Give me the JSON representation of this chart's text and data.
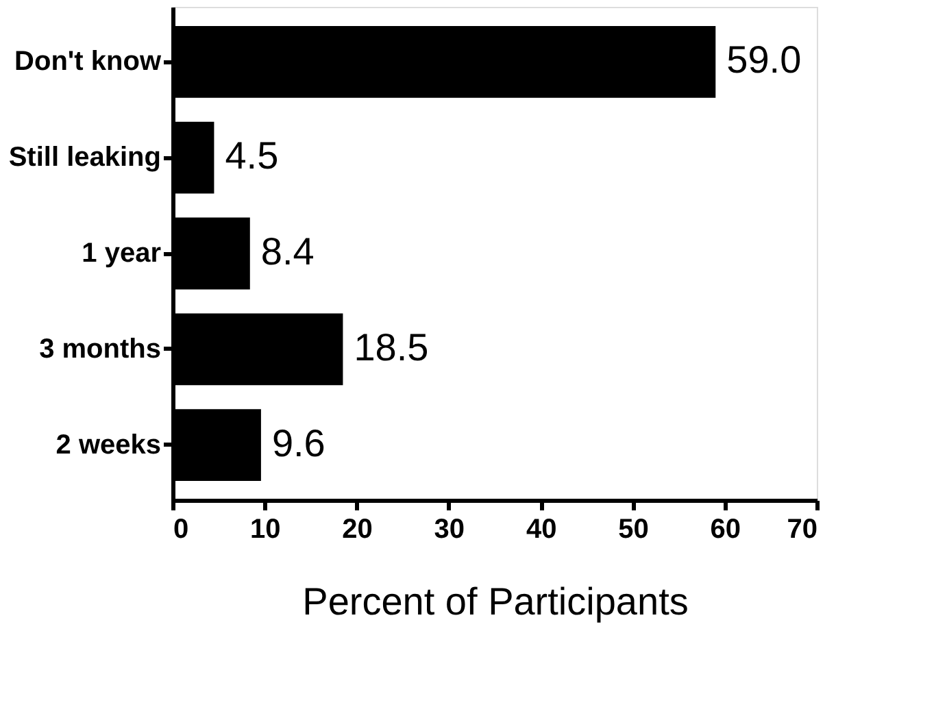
{
  "chart_data": {
    "type": "bar",
    "orientation": "horizontal",
    "xlabel": "Percent of Participants",
    "categories": [
      "Don't know",
      "Still leaking",
      "1 year",
      "3 months",
      "2 weeks"
    ],
    "values": [
      59.0,
      4.5,
      8.4,
      18.5,
      9.6
    ],
    "value_labels": [
      "59.0",
      "4.5",
      "8.4",
      "18.5",
      "9.6"
    ],
    "color": "#000000",
    "xlim": [
      0,
      70
    ],
    "xticks": [
      0,
      10,
      20,
      30,
      40,
      50,
      60,
      70
    ],
    "grid": false
  }
}
